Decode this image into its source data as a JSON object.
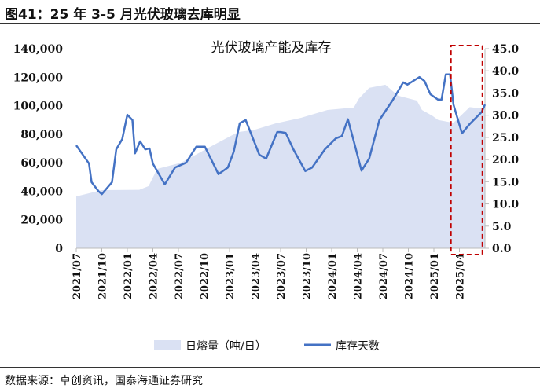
{
  "figure_title": "图41：25 年 3-5 月光伏玻璃去库明显",
  "source": "数据来源：卓创资讯，国泰海通证券研究",
  "chart_data": {
    "type": "area+line",
    "title": "光伏玻璃产能及库存",
    "x_unit": "months since 2021/07",
    "x_ticks": [
      0,
      3,
      6,
      9,
      12,
      15,
      18,
      21,
      24,
      27,
      30,
      33,
      36,
      39,
      42,
      45
    ],
    "x_tick_labels": [
      "2021/07",
      "2021/10",
      "2022/01",
      "2022/04",
      "2022/07",
      "2022/10",
      "2023/01",
      "2023/04",
      "2023/07",
      "2023/10",
      "2024/01",
      "2024/04",
      "2024/07",
      "2024/10",
      "2025/01",
      "2025/04"
    ],
    "x_range": [
      0,
      48
    ],
    "y_left": {
      "range": [
        0,
        140000
      ],
      "ticks": [
        0,
        20000,
        40000,
        60000,
        80000,
        100000,
        120000,
        140000
      ],
      "tick_labels": [
        "0",
        "20,000",
        "40,000",
        "60,000",
        "80,000",
        "100,000",
        "120,000",
        "140,000"
      ]
    },
    "y_right": {
      "range": [
        0,
        45
      ],
      "ticks": [
        0,
        5,
        10,
        15,
        20,
        25,
        30,
        35,
        40,
        45
      ],
      "tick_labels": [
        "0.0",
        "5.0",
        "10.0",
        "15.0",
        "20.0",
        "25.0",
        "30.0",
        "35.0",
        "40.0",
        "45.0"
      ]
    },
    "series": [
      {
        "name": "日熔量（吨/日）",
        "type": "area",
        "axis": "left",
        "color": "#dae1f3",
        "x": [
          0,
          3,
          7.4,
          8.5,
          9.5,
          12.3,
          15.7,
          19,
          20.9,
          23.4,
          26.4,
          29.5,
          32.6,
          33.2,
          34.4,
          36.3,
          37.8,
          40,
          40.6,
          41.8,
          42.5,
          44.3,
          44.9,
          46.2,
          47.7,
          48
        ],
        "values": [
          36400,
          40800,
          41000,
          43600,
          55700,
          60000,
          71000,
          81500,
          83000,
          87600,
          91500,
          97000,
          98700,
          105000,
          112500,
          114700,
          107000,
          103600,
          97000,
          93000,
          90000,
          88000,
          91500,
          99000,
          98000,
          98000
        ]
      },
      {
        "name": "库存天数",
        "type": "line",
        "axis": "right",
        "color": "#4472c4",
        "x": [
          0,
          1.5,
          1.8,
          2.6,
          3.0,
          4.2,
          4.7,
          5.4,
          6.0,
          6.6,
          6.9,
          7.5,
          8.1,
          8.6,
          9.0,
          10.4,
          11.6,
          12.9,
          14.1,
          15.1,
          15.7,
          16.7,
          17.8,
          18.5,
          19.2,
          19.9,
          21.5,
          22.3,
          23.6,
          24.0,
          24.6,
          25.5,
          26.9,
          27.7,
          29.2,
          30.5,
          31.2,
          31.9,
          32.6,
          33.5,
          34.4,
          35.6,
          37.2,
          38.4,
          38.9,
          40.3,
          40.9,
          41.6,
          42.5,
          42.9,
          43.4,
          43.9,
          44.3,
          45.3,
          46.2,
          47.6,
          48.0
        ],
        "values": [
          23.2,
          19.1,
          14.9,
          12.9,
          12.2,
          14.9,
          22.3,
          24.6,
          30.1,
          28.9,
          21.4,
          24.1,
          22.3,
          22.5,
          19.1,
          14.4,
          18.2,
          19.3,
          22.9,
          22.9,
          20.6,
          16.7,
          18.2,
          21.8,
          28.2,
          28.9,
          21.1,
          20.2,
          26.2,
          26.2,
          26.0,
          22.3,
          17.4,
          18.2,
          22.3,
          24.8,
          25.3,
          29.1,
          24.1,
          17.5,
          20.2,
          28.9,
          33.5,
          37.4,
          36.9,
          38.6,
          37.7,
          34.7,
          33.5,
          33.5,
          39.2,
          39.2,
          32.4,
          25.9,
          28.0,
          30.7,
          32.4
        ]
      }
    ],
    "highlight_x_range": [
      44,
      47.7
    ],
    "highlight_color": "#c00000",
    "legend_position": "bottom"
  }
}
